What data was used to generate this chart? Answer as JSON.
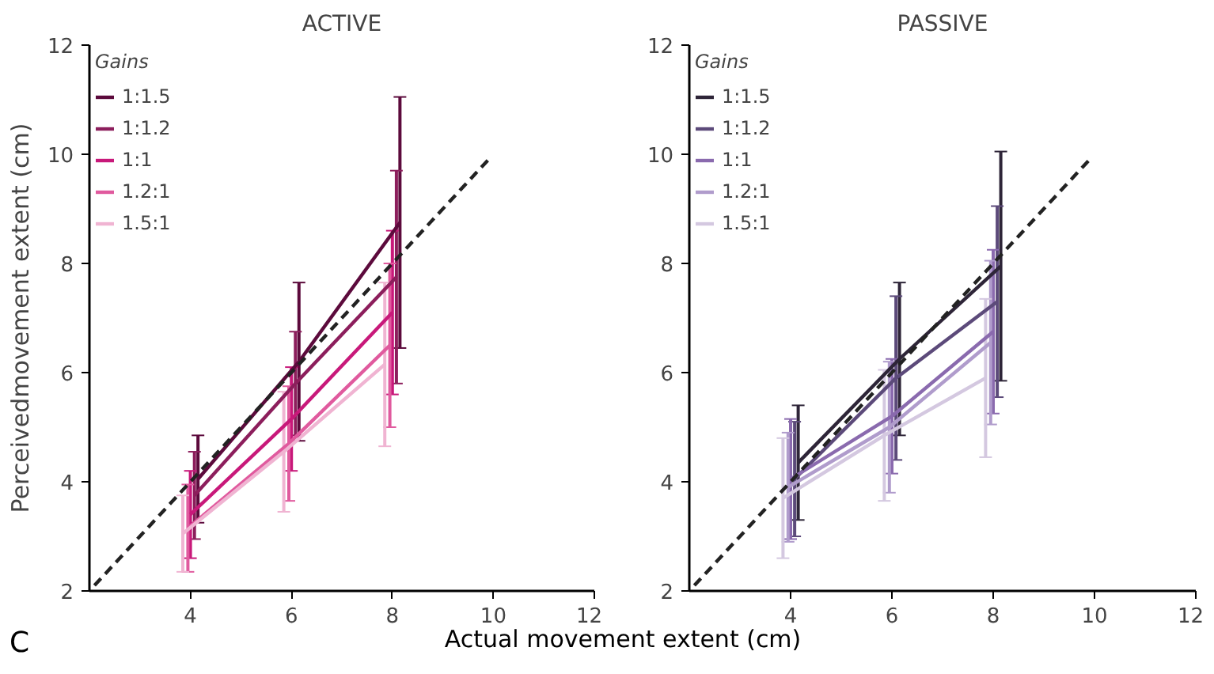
{
  "chart_data": [
    {
      "type": "line",
      "title": "ACTIVE",
      "ylabel": "Perceivedmovement extent (cm)",
      "xlabel": "Actual movement extent (cm)",
      "legend_title": "Gains",
      "legend": "top left",
      "grid": false,
      "marker": "none",
      "line_style": "solid",
      "xlim": [
        2,
        12
      ],
      "ylim": [
        2,
        12
      ],
      "xticks": [
        4,
        6,
        8,
        10,
        12
      ],
      "yticks": [
        2,
        4,
        6,
        8,
        10,
        12
      ],
      "annotations": [
        "C"
      ],
      "series": [
        {
          "name": "1:1.5",
          "color": "#5c0a3c",
          "x": [
            4.15,
            6.15,
            8.15
          ],
          "values": [
            4.05,
            6.2,
            8.75
          ],
          "errors": [
            0.8,
            1.45,
            2.3
          ]
        },
        {
          "name": "1:1.2",
          "color": "#8c1e5c",
          "x": [
            4.08,
            6.08,
            8.08
          ],
          "values": [
            3.75,
            5.8,
            7.75
          ],
          "errors": [
            0.8,
            0.95,
            1.95
          ]
        },
        {
          "name": "1:1",
          "color": "#c8197a",
          "x": [
            4.0,
            6.0,
            8.0
          ],
          "values": [
            3.4,
            5.15,
            7.1
          ],
          "errors": [
            0.8,
            0.95,
            1.5
          ]
        },
        {
          "name": "1.2:1",
          "color": "#e05a9e",
          "x": [
            3.95,
            5.95,
            7.95
          ],
          "values": [
            3.15,
            4.7,
            6.5
          ],
          "errors": [
            0.8,
            1.05,
            1.5
          ]
        },
        {
          "name": "1.5:1",
          "color": "#f0b4d2",
          "x": [
            3.85,
            5.85,
            7.85
          ],
          "values": [
            3.05,
            4.55,
            6.15
          ],
          "errors": [
            0.7,
            1.1,
            1.5
          ]
        },
        {
          "type": "line",
          "color": "#222222",
          "line_style": "dashed",
          "x": [
            2.1,
            9.9
          ],
          "values": [
            2.1,
            9.9
          ]
        }
      ]
    },
    {
      "type": "line",
      "title": "PASSIVE",
      "legend_title": "Gains",
      "legend": "top left",
      "grid": false,
      "marker": "none",
      "line_style": "solid",
      "xlim": [
        2,
        12
      ],
      "ylim": [
        2,
        12
      ],
      "xticks": [
        4,
        6,
        8,
        10,
        12
      ],
      "yticks": [
        2,
        4,
        6,
        8,
        10,
        12
      ],
      "series": [
        {
          "name": "1:1.5",
          "color": "#2e2538",
          "x": [
            4.15,
            6.15,
            8.15
          ],
          "values": [
            4.35,
            6.25,
            7.95
          ],
          "errors": [
            1.05,
            1.4,
            2.1
          ]
        },
        {
          "name": "1:1.2",
          "color": "#5c4a7a",
          "x": [
            4.08,
            6.08,
            8.08
          ],
          "values": [
            4.05,
            5.9,
            7.3
          ],
          "errors": [
            1.05,
            1.5,
            1.75
          ]
        },
        {
          "name": "1:1",
          "color": "#8a6aae",
          "x": [
            4.0,
            6.0,
            8.0
          ],
          "values": [
            4.05,
            5.2,
            6.75
          ],
          "errors": [
            1.1,
            1.05,
            1.5
          ]
        },
        {
          "name": "1.2:1",
          "color": "#b09ccc",
          "x": [
            3.95,
            5.95,
            7.95
          ],
          "values": [
            3.9,
            5.0,
            6.55
          ],
          "errors": [
            1.0,
            1.2,
            1.5
          ]
        },
        {
          "name": "1.5:1",
          "color": "#d4c8e0",
          "x": [
            3.85,
            5.85,
            7.85
          ],
          "values": [
            3.7,
            4.85,
            5.9
          ],
          "errors": [
            1.1,
            1.2,
            1.45
          ]
        },
        {
          "type": "line",
          "color": "#222222",
          "line_style": "dashed",
          "x": [
            2.1,
            9.9
          ],
          "values": [
            2.1,
            9.9
          ]
        }
      ]
    }
  ]
}
